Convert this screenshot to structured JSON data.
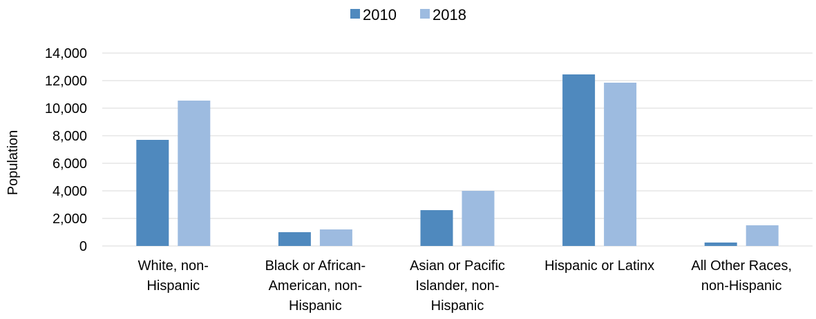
{
  "chart_data": {
    "type": "bar",
    "categories": [
      [
        "White, non-",
        "Hispanic"
      ],
      [
        "Black or African-",
        "American, non-",
        "Hispanic"
      ],
      [
        "Asian or Pacific",
        "Islander, non-",
        "Hispanic"
      ],
      [
        "Hispanic or Latinx"
      ],
      [
        "All Other Races,",
        "non-Hispanic"
      ]
    ],
    "series": [
      {
        "name": "2010",
        "color": "#4f89be",
        "values": [
          7700,
          1000,
          2600,
          12450,
          250
        ]
      },
      {
        "name": "2018",
        "color": "#9dbbe0",
        "values": [
          10550,
          1200,
          4000,
          11850,
          1500
        ]
      }
    ],
    "ylabel": "Population",
    "ylim": [
      0,
      14000
    ],
    "yticks": [
      0,
      2000,
      4000,
      6000,
      8000,
      10000,
      12000,
      14000
    ],
    "ytick_labels": [
      "0",
      "2,000",
      "4,000",
      "6,000",
      "8,000",
      "10,000",
      "12,000",
      "14,000"
    ],
    "grid": true,
    "legend_position": "top-center"
  }
}
